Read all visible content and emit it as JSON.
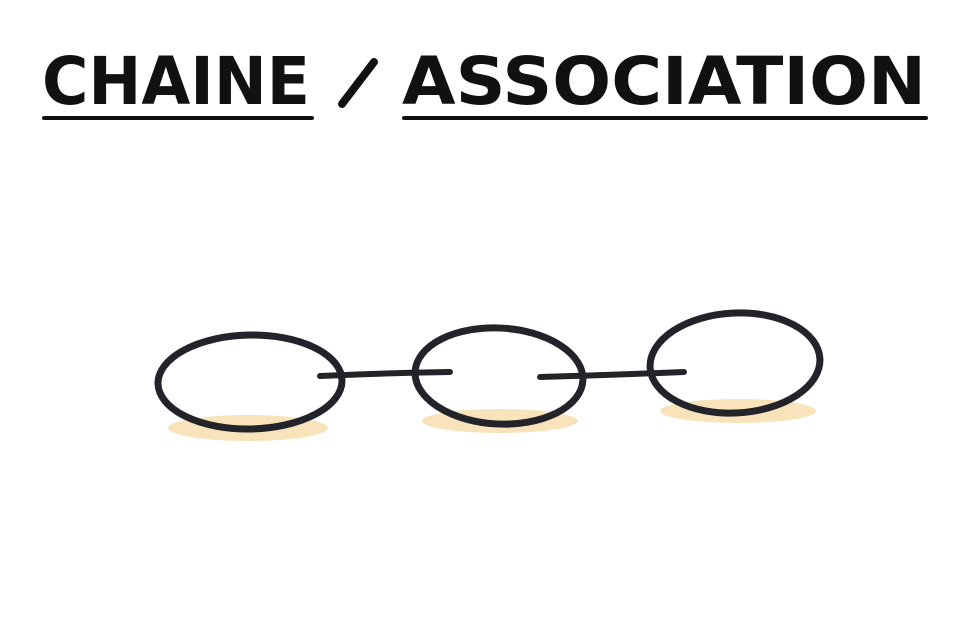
{
  "title": {
    "left": "CHAINE",
    "separator": "/",
    "right": "ASSOCIATION"
  },
  "colors": {
    "ink": "#23232a",
    "shadow": "#f6d9a3",
    "background": "#ffffff"
  },
  "diagram": {
    "type": "chain",
    "links": 3
  }
}
